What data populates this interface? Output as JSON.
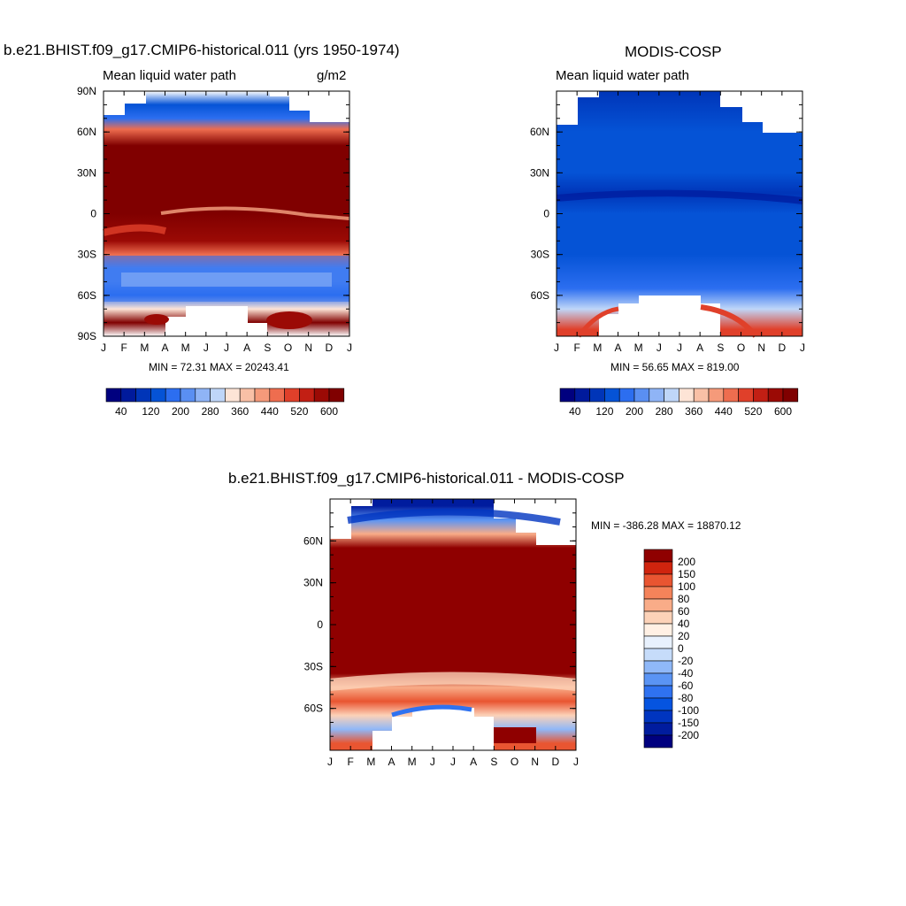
{
  "panels": [
    {
      "title": "b.e21.BHIST.f09_g17.CMIP6-historical.011 (yrs 1950-1974)",
      "left_label": "Mean liquid water path",
      "right_label": "g/m2",
      "stats": "MIN =  72.31 MAX = 20243.41"
    },
    {
      "title": "MODIS-COSP",
      "left_label": "Mean liquid water path",
      "right_label": "",
      "stats": "MIN =  56.65 MAX = 819.00"
    },
    {
      "title": "b.e21.BHIST.f09_g17.CMIP6-historical.011 - MODIS-COSP",
      "left_label": "",
      "right_label": "",
      "stats": "MIN = -386.28 MAX = 18870.12"
    }
  ],
  "colors": {
    "lwp_scale": [
      "#00007f",
      "#001a9c",
      "#0035b8",
      "#0553d6",
      "#2c6ef0",
      "#5a8ff2",
      "#8fb4f6",
      "#bfd6f8",
      "#fde4d6",
      "#f9c0a6",
      "#f59a7a",
      "#ee6d4f",
      "#e0402a",
      "#c21f14",
      "#9b0a05",
      "#800000"
    ],
    "diff_scale": [
      "#00007f",
      "#001c9e",
      "#0035c0",
      "#0554e0",
      "#2f72f0",
      "#5a94f4",
      "#8fb8f8",
      "#c6dcfa",
      "#e8f1fd",
      "#fff0e4",
      "#fcd2b8",
      "#f9ac88",
      "#f4835a",
      "#e95531",
      "#d0240e",
      "#8f0000"
    ],
    "land_missing": "#ffffff"
  },
  "chart_data": [
    {
      "type": "heatmap",
      "title": "b.e21.BHIST.f09_g17.CMIP6-historical.011 (yrs 1950-1974)",
      "variable": "Mean liquid water path",
      "units": "g/m2",
      "x_ticks": [
        "J",
        "F",
        "M",
        "A",
        "M",
        "J",
        "J",
        "A",
        "S",
        "O",
        "N",
        "D",
        "J"
      ],
      "y_ticks": [
        "90N",
        "60N",
        "30N",
        "0",
        "30S",
        "60S",
        "90S"
      ],
      "ylim": [
        -90,
        90
      ],
      "colorbar": {
        "orientation": "horizontal",
        "labels": [
          "40",
          "120",
          "200",
          "280",
          "360",
          "440",
          "520",
          "600"
        ],
        "levels": [
          20,
          40,
          80,
          120,
          160,
          200,
          240,
          280,
          320,
          360,
          400,
          440,
          480,
          520,
          560,
          600
        ]
      },
      "min": 72.31,
      "max": 20243.41,
      "lat_profile": [
        {
          "lat": 90,
          "level": -1
        },
        {
          "lat": 80,
          "level": 3
        },
        {
          "lat": 70,
          "level": 4
        },
        {
          "lat": 62,
          "level": 11
        },
        {
          "lat": 50,
          "level": 15
        },
        {
          "lat": 30,
          "level": 15
        },
        {
          "lat": 10,
          "level": 15
        },
        {
          "lat": 0,
          "level": 15
        },
        {
          "lat": -20,
          "level": 14
        },
        {
          "lat": -30,
          "level": 11
        },
        {
          "lat": -40,
          "level": 5
        },
        {
          "lat": -50,
          "level": 5
        },
        {
          "lat": -60,
          "level": 4
        },
        {
          "lat": -70,
          "level": 8
        },
        {
          "lat": -80,
          "level": 15
        },
        {
          "lat": -90,
          "level": -1
        }
      ]
    },
    {
      "type": "heatmap",
      "title": "MODIS-COSP",
      "variable": "Mean liquid water path",
      "x_ticks": [
        "J",
        "F",
        "M",
        "A",
        "M",
        "J",
        "J",
        "A",
        "S",
        "O",
        "N",
        "D",
        "J"
      ],
      "y_ticks": [
        "60N",
        "30N",
        "0",
        "30S",
        "60S"
      ],
      "ylim": [
        -90,
        90
      ],
      "colorbar": {
        "orientation": "horizontal",
        "labels": [
          "40",
          "120",
          "200",
          "280",
          "360",
          "440",
          "520",
          "600"
        ],
        "levels": [
          20,
          40,
          80,
          120,
          160,
          200,
          240,
          280,
          320,
          360,
          400,
          440,
          480,
          520,
          560,
          600
        ]
      },
      "min": 56.65,
      "max": 819.0,
      "lat_profile": [
        {
          "lat": 90,
          "level": 2
        },
        {
          "lat": 60,
          "level": 3
        },
        {
          "lat": 30,
          "level": 3
        },
        {
          "lat": 15,
          "level": 2
        },
        {
          "lat": 0,
          "level": 3
        },
        {
          "lat": -30,
          "level": 3
        },
        {
          "lat": -55,
          "level": 4
        },
        {
          "lat": -70,
          "level": 7
        },
        {
          "lat": -85,
          "level": 12
        }
      ]
    },
    {
      "type": "heatmap",
      "title": "b.e21.BHIST.f09_g17.CMIP6-historical.011 - MODIS-COSP",
      "x_ticks": [
        "J",
        "F",
        "M",
        "A",
        "M",
        "J",
        "J",
        "A",
        "S",
        "O",
        "N",
        "D",
        "J"
      ],
      "y_ticks": [
        "60N",
        "30N",
        "0",
        "30S",
        "60S"
      ],
      "ylim": [
        -90,
        90
      ],
      "colorbar": {
        "orientation": "vertical",
        "labels": [
          "200",
          "150",
          "100",
          "80",
          "60",
          "40",
          "20",
          "0",
          "-20",
          "-40",
          "-60",
          "-80",
          "-100",
          "-150",
          "-200"
        ]
      },
      "min": -386.28,
      "max": 18870.12,
      "lat_profile": [
        {
          "lat": 85,
          "level": 1
        },
        {
          "lat": 75,
          "level": 5
        },
        {
          "lat": 65,
          "level": 11
        },
        {
          "lat": 55,
          "level": 15
        },
        {
          "lat": 0,
          "level": 15
        },
        {
          "lat": -35,
          "level": 15
        },
        {
          "lat": -45,
          "level": 11
        },
        {
          "lat": -55,
          "level": 13
        },
        {
          "lat": -65,
          "level": 10
        },
        {
          "lat": -75,
          "level": 6
        },
        {
          "lat": -85,
          "level": 13
        }
      ]
    }
  ]
}
